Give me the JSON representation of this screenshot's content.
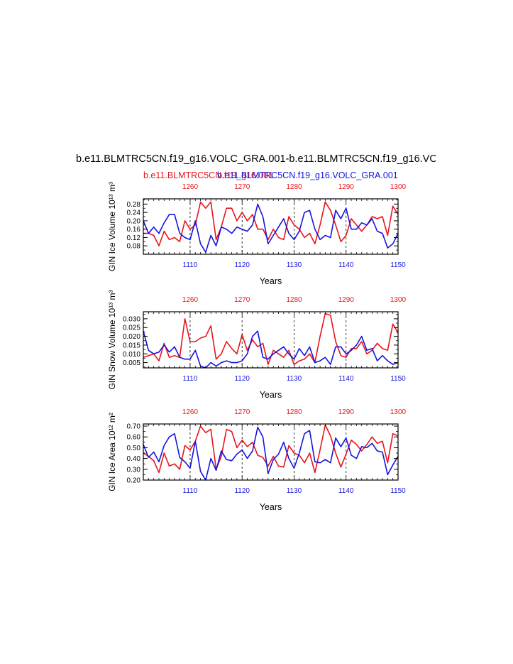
{
  "figure": {
    "title": "b.e11.BLMTRC5CN.f19_g16.VOLC_GRA.001-b.e11.BLMTRC5CN.f19_g16.VOLC",
    "legend": [
      {
        "label": "b.e11.BLMTRC5CN.f19_g16.001",
        "color": "#e8141c"
      },
      {
        "label": "b.e11.BLMTRC5CN.f19_g16.VOLC_GRA.001",
        "color": "#1414e0"
      }
    ]
  },
  "colors": {
    "red": "#e8141c",
    "blue": "#1414e0",
    "axis": "#000000"
  },
  "chart_data": [
    {
      "type": "line",
      "ylabel": "GIN Ice Volume 10¹³ m³",
      "xlabel": "Years",
      "ylim": [
        0.04,
        0.305
      ],
      "yticks": [
        0.08,
        0.12,
        0.16,
        0.2,
        0.24,
        0.28
      ],
      "ytick_labels": [
        "0.08",
        "0.12",
        "0.16",
        "0.20",
        "0.24",
        "0.28"
      ],
      "bottom_axis": {
        "range": [
          1101,
          1150
        ],
        "ticks": [
          1110,
          1120,
          1130,
          1140,
          1150
        ],
        "color": "#1414e0"
      },
      "top_axis": {
        "range": [
          1251,
          1300
        ],
        "ticks": [
          1260,
          1270,
          1280,
          1290,
          1300
        ],
        "color": "#e8141c"
      },
      "series": [
        {
          "color": "#e8141c",
          "axis": "top",
          "x_start": 1251,
          "values": [
            0.14,
            0.14,
            0.13,
            0.08,
            0.15,
            0.11,
            0.12,
            0.1,
            0.2,
            0.16,
            0.18,
            0.29,
            0.26,
            0.29,
            0.11,
            0.17,
            0.26,
            0.26,
            0.2,
            0.24,
            0.2,
            0.23,
            0.16,
            0.16,
            0.11,
            0.16,
            0.12,
            0.11,
            0.22,
            0.18,
            0.16,
            0.12,
            0.14,
            0.09,
            0.18,
            0.29,
            0.25,
            0.18,
            0.1,
            0.13,
            0.21,
            0.18,
            0.15,
            0.18,
            0.22,
            0.21,
            0.22,
            0.13,
            0.27,
            0.23
          ]
        },
        {
          "color": "#1414e0",
          "axis": "bottom",
          "x_start": 1101,
          "values": [
            0.2,
            0.14,
            0.17,
            0.14,
            0.19,
            0.23,
            0.23,
            0.14,
            0.12,
            0.11,
            0.2,
            0.09,
            0.05,
            0.13,
            0.08,
            0.17,
            0.16,
            0.14,
            0.17,
            0.16,
            0.15,
            0.18,
            0.28,
            0.22,
            0.09,
            0.13,
            0.17,
            0.21,
            0.14,
            0.11,
            0.15,
            0.24,
            0.25,
            0.16,
            0.11,
            0.13,
            0.12,
            0.25,
            0.21,
            0.26,
            0.16,
            0.16,
            0.19,
            0.18,
            0.21,
            0.15,
            0.14,
            0.07,
            0.09,
            0.14
          ]
        }
      ]
    },
    {
      "type": "line",
      "ylabel": "GIN Snow Volume 10¹³ m³",
      "xlabel": "Years",
      "ylim": [
        0.002,
        0.034
      ],
      "yticks": [
        0.005,
        0.01,
        0.015,
        0.02,
        0.025,
        0.03
      ],
      "ytick_labels": [
        "0.005",
        "0.010",
        "0.015",
        "0.020",
        "0.025",
        "0.030"
      ],
      "bottom_axis": {
        "range": [
          1101,
          1150
        ],
        "ticks": [
          1110,
          1120,
          1130,
          1140,
          1150
        ],
        "color": "#1414e0"
      },
      "top_axis": {
        "range": [
          1251,
          1300
        ],
        "ticks": [
          1260,
          1270,
          1280,
          1290,
          1300
        ],
        "color": "#e8141c"
      },
      "series": [
        {
          "color": "#e8141c",
          "axis": "top",
          "x_start": 1251,
          "values": [
            0.008,
            0.009,
            0.01,
            0.006,
            0.016,
            0.008,
            0.009,
            0.008,
            0.03,
            0.017,
            0.017,
            0.019,
            0.02,
            0.026,
            0.007,
            0.01,
            0.017,
            0.013,
            0.01,
            0.021,
            0.012,
            0.018,
            0.014,
            0.016,
            0.004,
            0.012,
            0.01,
            0.008,
            0.012,
            0.004,
            0.006,
            0.007,
            0.01,
            0.005,
            0.02,
            0.033,
            0.032,
            0.017,
            0.009,
            0.008,
            0.013,
            0.013,
            0.017,
            0.01,
            0.012,
            0.016,
            0.013,
            0.012,
            0.027,
            0.022
          ]
        },
        {
          "color": "#1414e0",
          "axis": "bottom",
          "x_start": 1101,
          "values": [
            0.023,
            0.012,
            0.01,
            0.011,
            0.015,
            0.011,
            0.014,
            0.008,
            0.007,
            0.007,
            0.012,
            0.003,
            0.002,
            0.005,
            0.003,
            0.005,
            0.006,
            0.005,
            0.005,
            0.006,
            0.01,
            0.02,
            0.023,
            0.008,
            0.007,
            0.01,
            0.012,
            0.014,
            0.01,
            0.007,
            0.013,
            0.009,
            0.014,
            0.005,
            0.006,
            0.008,
            0.004,
            0.014,
            0.014,
            0.01,
            0.012,
            0.015,
            0.02,
            0.012,
            0.013,
            0.006,
            0.009,
            0.006,
            0.004,
            0.005
          ]
        }
      ]
    },
    {
      "type": "line",
      "ylabel": "GIN Ice Area 10¹² m²",
      "xlabel": "Years",
      "ylim": [
        0.2,
        0.72
      ],
      "yticks": [
        0.2,
        0.3,
        0.4,
        0.5,
        0.6,
        0.7
      ],
      "ytick_labels": [
        "0.20",
        "0.30",
        "0.40",
        "0.50",
        "0.60",
        "0.70"
      ],
      "bottom_axis": {
        "range": [
          1101,
          1150
        ],
        "ticks": [
          1110,
          1120,
          1130,
          1140,
          1150
        ],
        "color": "#1414e0"
      },
      "top_axis": {
        "range": [
          1251,
          1300
        ],
        "ticks": [
          1260,
          1270,
          1280,
          1290,
          1300
        ],
        "color": "#e8141c"
      },
      "series": [
        {
          "color": "#e8141c",
          "axis": "top",
          "x_start": 1251,
          "values": [
            0.45,
            0.42,
            0.38,
            0.27,
            0.45,
            0.33,
            0.35,
            0.3,
            0.52,
            0.48,
            0.56,
            0.7,
            0.64,
            0.67,
            0.3,
            0.42,
            0.67,
            0.65,
            0.5,
            0.57,
            0.51,
            0.55,
            0.43,
            0.41,
            0.33,
            0.42,
            0.33,
            0.32,
            0.52,
            0.45,
            0.43,
            0.36,
            0.45,
            0.27,
            0.48,
            0.71,
            0.61,
            0.45,
            0.32,
            0.44,
            0.57,
            0.53,
            0.47,
            0.53,
            0.6,
            0.54,
            0.56,
            0.36,
            0.63,
            0.61
          ]
        },
        {
          "color": "#1414e0",
          "axis": "bottom",
          "x_start": 1101,
          "values": [
            0.53,
            0.41,
            0.46,
            0.37,
            0.52,
            0.6,
            0.63,
            0.41,
            0.37,
            0.31,
            0.56,
            0.28,
            0.2,
            0.4,
            0.29,
            0.47,
            0.39,
            0.38,
            0.44,
            0.48,
            0.4,
            0.47,
            0.69,
            0.6,
            0.26,
            0.39,
            0.44,
            0.55,
            0.4,
            0.31,
            0.45,
            0.63,
            0.66,
            0.37,
            0.36,
            0.39,
            0.36,
            0.59,
            0.51,
            0.59,
            0.43,
            0.4,
            0.51,
            0.5,
            0.54,
            0.47,
            0.46,
            0.25,
            0.34,
            0.42
          ]
        }
      ]
    }
  ]
}
